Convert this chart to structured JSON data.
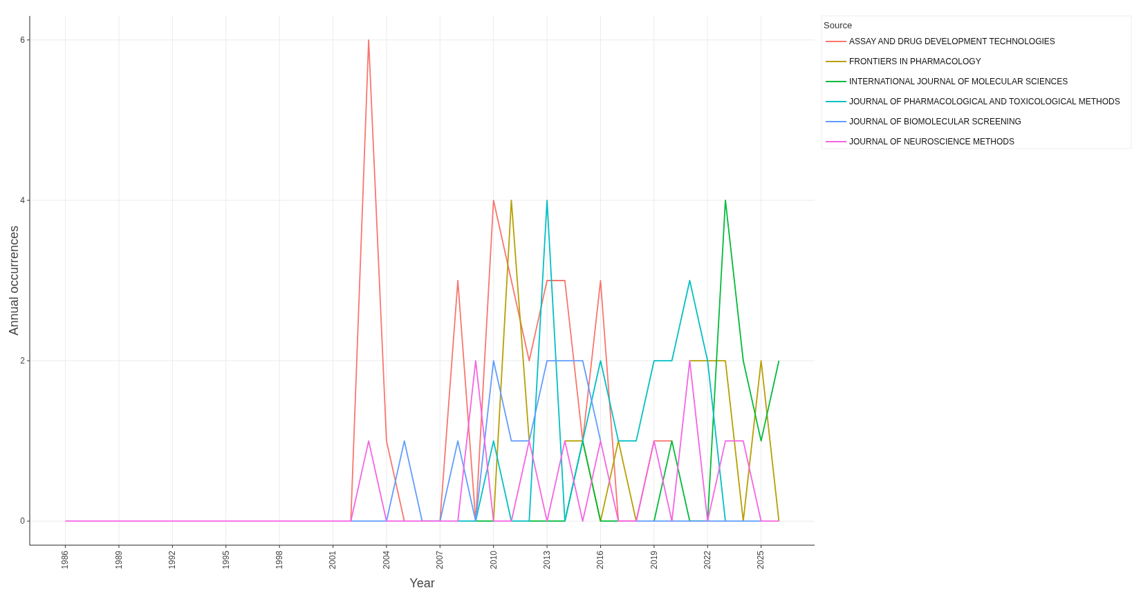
{
  "chart_data": {
    "type": "line",
    "xlabel": "Year",
    "ylabel": "Annual occurrences",
    "legend_title": "Source",
    "x": [
      1986,
      1987,
      1988,
      1989,
      1990,
      1991,
      1992,
      1993,
      1994,
      1995,
      1996,
      1997,
      1998,
      1999,
      2000,
      2001,
      2002,
      2003,
      2004,
      2005,
      2006,
      2007,
      2008,
      2009,
      2010,
      2011,
      2012,
      2013,
      2014,
      2015,
      2016,
      2017,
      2018,
      2019,
      2020,
      2021,
      2022,
      2023,
      2024,
      2025,
      2026
    ],
    "series": [
      {
        "name": "ASSAY AND DRUG DEVELOPMENT TECHNOLOGIES",
        "color": "#f8766d",
        "values": [
          null,
          null,
          null,
          null,
          null,
          null,
          null,
          null,
          null,
          null,
          null,
          null,
          null,
          null,
          null,
          null,
          0,
          6,
          1,
          0,
          null,
          0,
          3,
          0,
          4,
          3,
          2,
          3,
          3,
          1,
          3,
          0,
          0,
          1,
          1,
          null,
          null,
          null,
          null,
          null,
          null
        ]
      },
      {
        "name": "FRONTIERS IN PHARMACOLOGY",
        "color": "#b79f00",
        "values": [
          null,
          null,
          null,
          null,
          null,
          null,
          null,
          null,
          null,
          null,
          null,
          null,
          null,
          null,
          null,
          null,
          null,
          null,
          null,
          null,
          null,
          null,
          null,
          null,
          0,
          4,
          1,
          null,
          1,
          1,
          0,
          1,
          0,
          null,
          null,
          2,
          2,
          2,
          0,
          2,
          0
        ]
      },
      {
        "name": "INTERNATIONAL JOURNAL OF MOLECULAR SCIENCES",
        "color": "#00ba38",
        "values": [
          null,
          null,
          null,
          null,
          null,
          null,
          null,
          null,
          null,
          null,
          null,
          null,
          null,
          null,
          null,
          null,
          null,
          null,
          null,
          null,
          null,
          null,
          null,
          0,
          0,
          null,
          0,
          0,
          0,
          1,
          0,
          0,
          null,
          0,
          1,
          0,
          0,
          4,
          2,
          1,
          2
        ]
      },
      {
        "name": "JOURNAL OF PHARMACOLOGICAL AND TOXICOLOGICAL METHODS",
        "color": "#00bfc4",
        "values": [
          null,
          null,
          null,
          null,
          null,
          null,
          null,
          null,
          null,
          null,
          null,
          null,
          null,
          null,
          null,
          null,
          null,
          null,
          null,
          null,
          null,
          null,
          0,
          0,
          1,
          0,
          0,
          4,
          0,
          1,
          2,
          1,
          1,
          2,
          2,
          3,
          2,
          0,
          null,
          null,
          null
        ]
      },
      {
        "name": "JOURNAL OF BIOMOLECULAR SCREENING",
        "color": "#619cff",
        "values": [
          null,
          null,
          null,
          null,
          null,
          null,
          null,
          null,
          null,
          null,
          null,
          null,
          null,
          null,
          null,
          null,
          0,
          0,
          0,
          1,
          0,
          0,
          1,
          0,
          2,
          1,
          1,
          2,
          2,
          2,
          1,
          null,
          0,
          0,
          0,
          0,
          0,
          0,
          0,
          0,
          null
        ]
      },
      {
        "name": "JOURNAL OF NEUROSCIENCE METHODS",
        "color": "#f564e3",
        "values": [
          0,
          0,
          0,
          0,
          0,
          0,
          0,
          0,
          0,
          0,
          0,
          0,
          0,
          0,
          0,
          0,
          0,
          1,
          0,
          0,
          0,
          0,
          0,
          2,
          0,
          0,
          1,
          0,
          1,
          0,
          1,
          0,
          0,
          1,
          0,
          2,
          0,
          1,
          1,
          0,
          0
        ]
      }
    ],
    "xlim": [
      1984,
      2028
    ],
    "xticks": [
      1986,
      1989,
      1992,
      1995,
      1998,
      2001,
      2004,
      2007,
      2010,
      2013,
      2016,
      2019,
      2022,
      2025
    ],
    "ylim": [
      -0.3,
      6.3
    ],
    "yticks": [
      0,
      2,
      4,
      6
    ],
    "grid": true,
    "legend": "top right"
  }
}
